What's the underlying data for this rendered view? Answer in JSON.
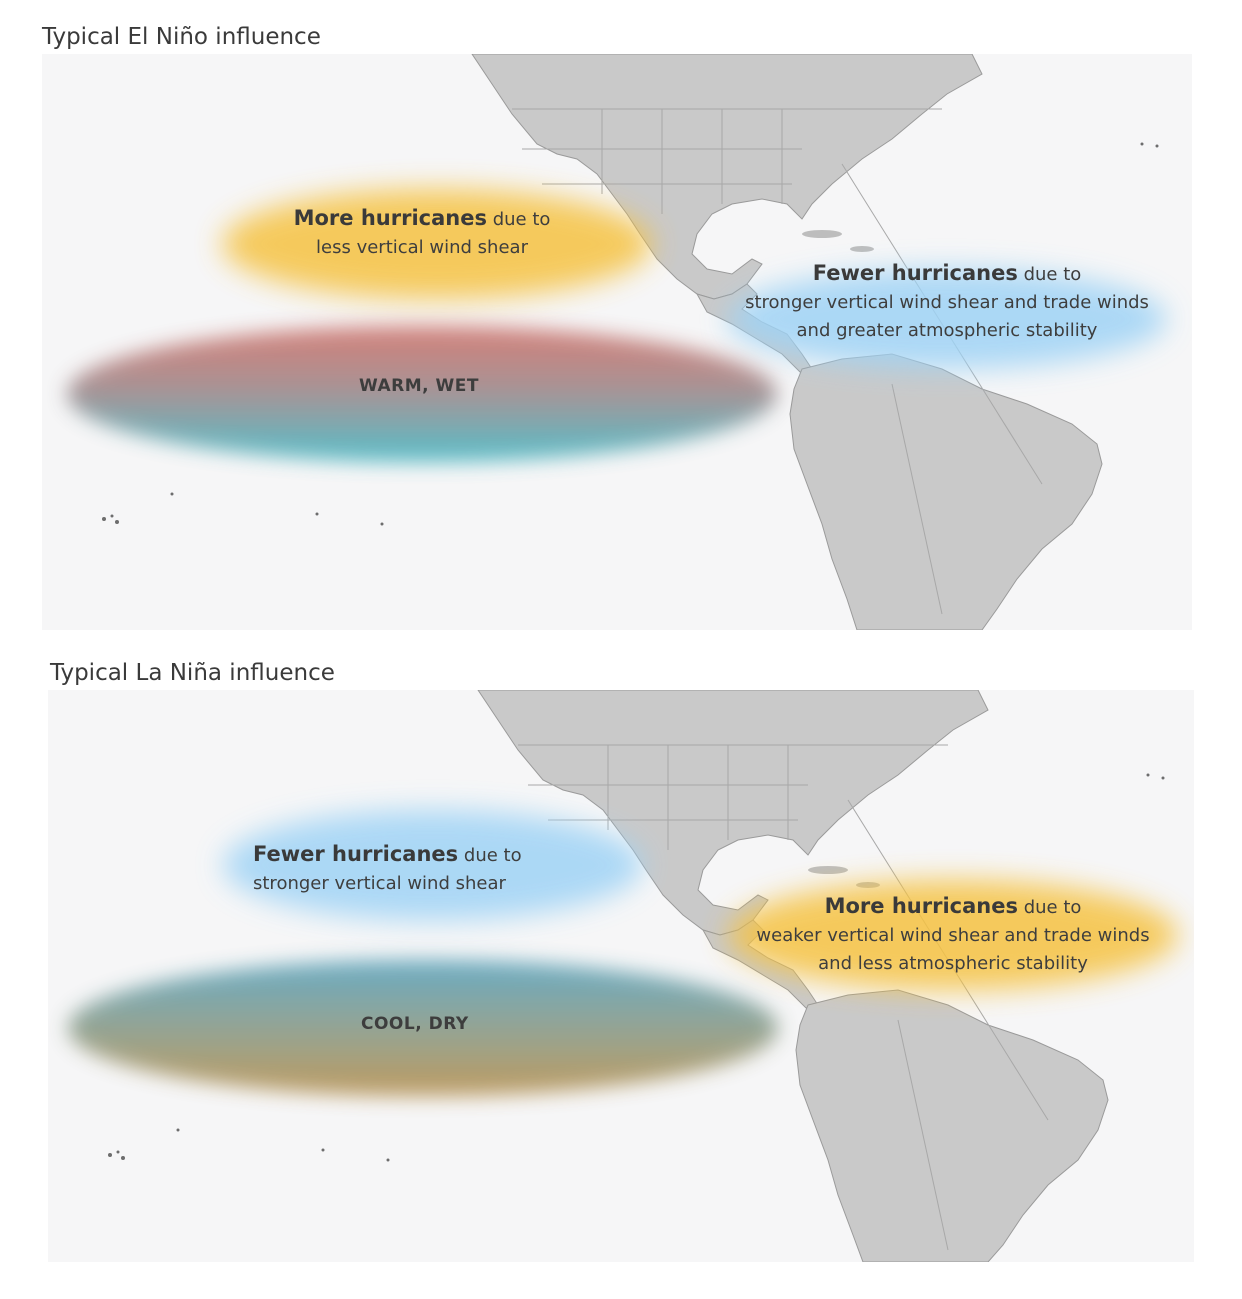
{
  "panels": [
    {
      "title": "Typical El Niño influence",
      "pacific": {
        "headline": "More hurricanes",
        "suffix": " due to",
        "line2": "less vertical wind shear",
        "color": "#f5c242"
      },
      "atlantic": {
        "headline": "Fewer hurricanes",
        "suffix": " due to",
        "line2": "stronger vertical wind shear and trade winds",
        "line3": "and greater atmospheric stability",
        "color": "#9fd3f5"
      },
      "ocean_zone": {
        "label": "WARM, WET",
        "top_color": "#d0736b",
        "bottom_color": "#45b8c4"
      }
    },
    {
      "title": "Typical La Niña influence",
      "pacific": {
        "headline": "Fewer hurricanes",
        "suffix": " due to",
        "line2": "stronger vertical wind shear",
        "color": "#9fd3f5"
      },
      "atlantic": {
        "headline": "More hurricanes",
        "suffix": " due to",
        "line2": "weaker vertical wind shear and trade winds",
        "line3": "and less atmospheric stability",
        "color": "#f5c242"
      },
      "ocean_zone": {
        "label": "COOL, DRY",
        "top_color": "#5aa3bd",
        "bottom_color": "#b8914f"
      }
    }
  ],
  "map_land_color": "#c9c9c9",
  "map_ocean_color": "#f6f6f7"
}
